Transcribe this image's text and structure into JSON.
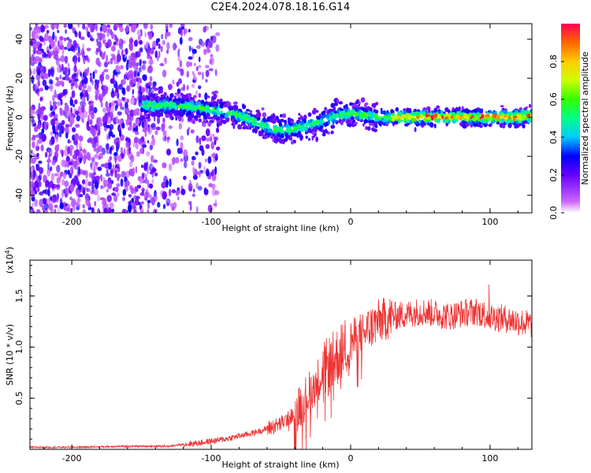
{
  "title": "C2E4.2024.078.18.16.G14",
  "colors": {
    "line": "#ee3333",
    "axes": "#000000",
    "background": "#ffffff"
  },
  "chart_data": [
    {
      "type": "heatmap",
      "title": "C2E4.2024.078.18.16.G14",
      "xlabel": "Height of straight line (km)",
      "ylabel": "Frequency (Hz)",
      "xlim": [
        -230,
        130
      ],
      "ylim": [
        -49,
        48
      ],
      "xticks": [
        -200,
        -100,
        0,
        100
      ],
      "xtick_labels": [
        "-200",
        "-100",
        "0",
        "100"
      ],
      "yticks": [
        -40,
        -20,
        0,
        20,
        40
      ],
      "ytick_labels": [
        "-40",
        "-20",
        "0",
        "20",
        "40"
      ],
      "noise_region_x": [
        -230,
        -95
      ],
      "ridge": {
        "x": [
          -150,
          -130,
          -110,
          -100,
          -90,
          -80,
          -70,
          -60,
          -50,
          -40,
          -30,
          -20,
          -10,
          0,
          10,
          20,
          30,
          40,
          50,
          60,
          70,
          80,
          90,
          100,
          110,
          120,
          130
        ],
        "freq": [
          6,
          6,
          5,
          4,
          3,
          1,
          -2,
          -5,
          -7,
          -6,
          -4,
          -2,
          1,
          2,
          1,
          0,
          0,
          0,
          0,
          0,
          0,
          0,
          0,
          0,
          0,
          0,
          1
        ]
      },
      "colorbar": {
        "label": "Normalized spectral amplitude",
        "range": [
          0,
          1
        ],
        "ticks": [
          0.0,
          0.2,
          0.4,
          0.6,
          0.8
        ],
        "tick_labels": [
          "0.0",
          "0.2",
          "0.4",
          "0.6",
          "0.8"
        ]
      },
      "grid": false
    },
    {
      "type": "line",
      "xlabel": "Height of straight line (km)",
      "ylabel": "SNR (10 * v/v)",
      "scale_note": "(x10",
      "scale_exp": "4",
      "scale_close": ")",
      "xlim": [
        -230,
        130
      ],
      "ylim": [
        0,
        1.85
      ],
      "xticks": [
        -200,
        -100,
        0,
        100
      ],
      "xtick_labels": [
        "-200",
        "-100",
        "0",
        "100"
      ],
      "yticks": [
        0.5,
        1.0,
        1.5
      ],
      "ytick_labels": [
        "0.5",
        "1.0",
        "1.5"
      ],
      "series": [
        {
          "x": [
            -230,
            -200,
            -160,
            -130,
            -120,
            -110,
            -100,
            -90,
            -80,
            -70,
            -60,
            -50,
            -40,
            -30,
            -20,
            -10,
            0,
            10,
            20,
            30,
            40,
            50,
            60,
            70,
            80,
            90,
            100,
            110,
            120,
            130
          ],
          "y": [
            0.02,
            0.02,
            0.03,
            0.03,
            0.05,
            0.06,
            0.08,
            0.1,
            0.13,
            0.16,
            0.2,
            0.25,
            0.35,
            0.55,
            0.75,
            0.9,
            1.05,
            1.15,
            1.25,
            1.3,
            1.32,
            1.35,
            1.33,
            1.3,
            1.33,
            1.35,
            1.3,
            1.28,
            1.25,
            1.22
          ]
        }
      ],
      "grid": false
    }
  ]
}
